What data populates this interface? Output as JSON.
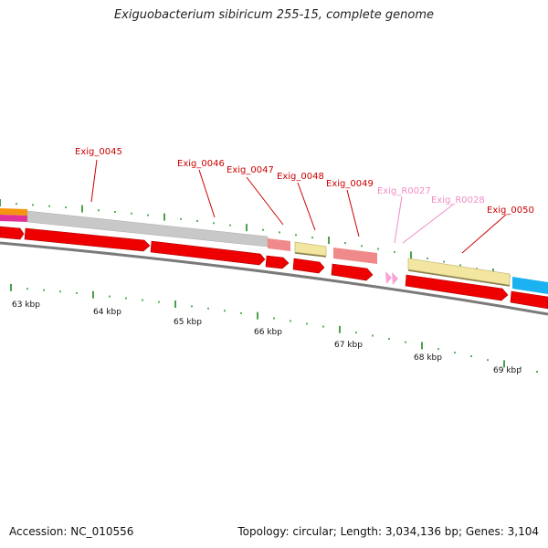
{
  "title": "Exiguobacterium sibiricum 255-15, complete genome",
  "footer": {
    "accession": "Accession: NC_010556",
    "summary": "Topology: circular; Length: 3,034,136 bp; Genes: 3,104"
  },
  "colors": {
    "cds_arrow": "#ee0000",
    "trna_arrow": "#f7a3d6",
    "gray_bar": "#c8c8c8",
    "salmon_bar": "#f08a8a",
    "yellow_bar": "#f2e6a0",
    "cyan_bar": "#1ab2f0",
    "orange_bar": "#f7940f",
    "magenta_bar": "#e0309a",
    "backbone": "#7a7a7a",
    "tick": "#1a8a1a",
    "label_red": "#cc0000",
    "label_pink": "#f28cc6"
  },
  "gene_labels": [
    {
      "text": "Exig_0045",
      "color": "label_red"
    },
    {
      "text": "Exig_0046",
      "color": "label_red"
    },
    {
      "text": "Exig_0047",
      "color": "label_red"
    },
    {
      "text": "Exig_0048",
      "color": "label_red"
    },
    {
      "text": "Exig_0049",
      "color": "label_red"
    },
    {
      "text": "Exig_R0027",
      "color": "label_pink"
    },
    {
      "text": "Exig_R0028",
      "color": "label_pink"
    },
    {
      "text": "Exig_0050",
      "color": "label_red"
    }
  ],
  "scale_labels": [
    "63 kbp",
    "64 kbp",
    "65 kbp",
    "66 kbp",
    "67 kbp",
    "68 kbp",
    "69 kbp"
  ]
}
